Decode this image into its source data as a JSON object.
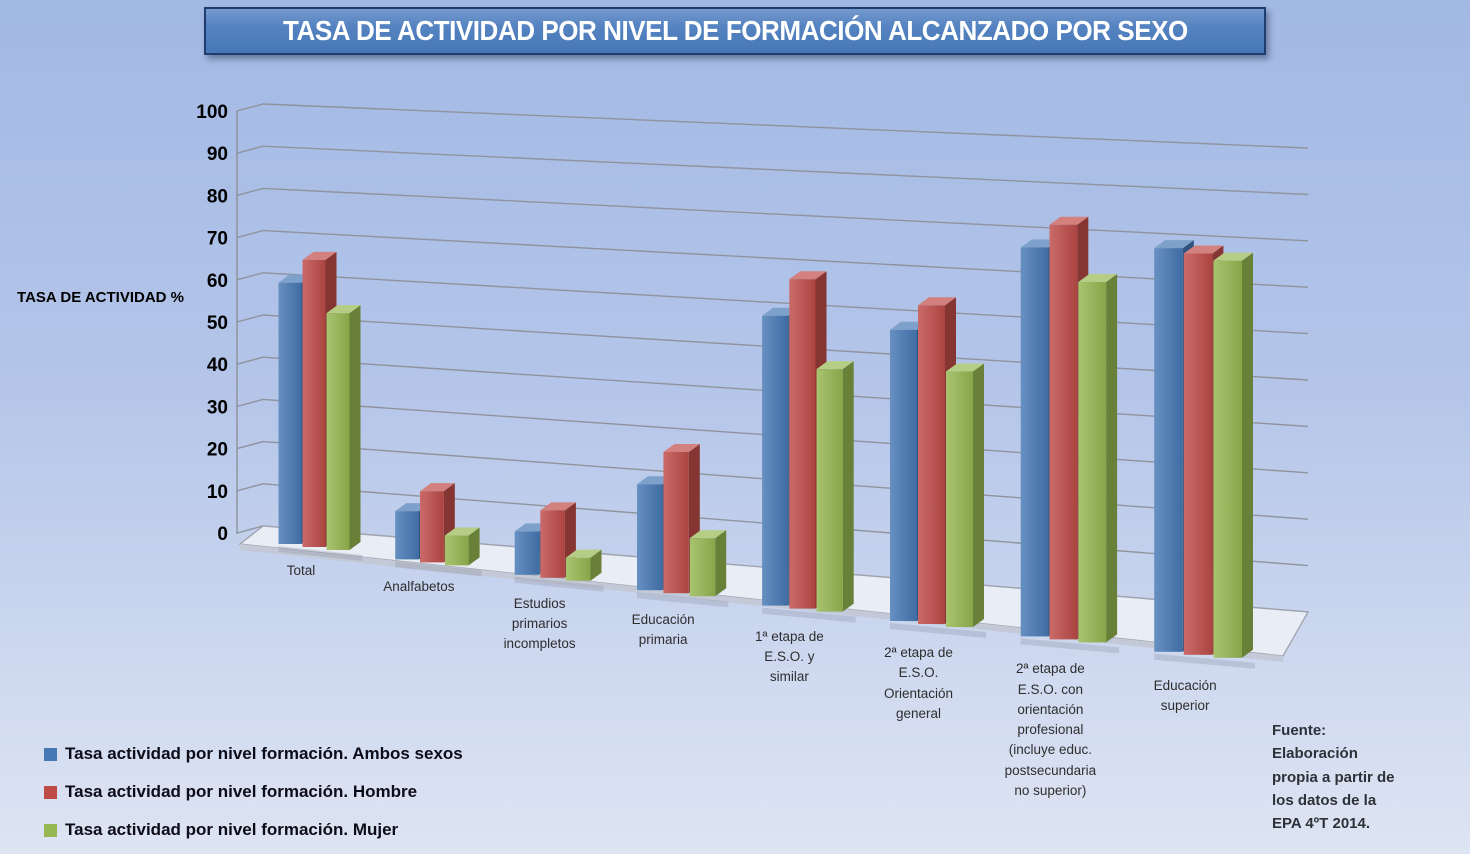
{
  "title": "TASA DE ACTIVIDAD POR NIVEL DE FORMACIÓN ALCANZADO POR SEXO",
  "source_note": "Fuente: Elaboración propia a partir de los datos de la EPA 4ºT 2014.",
  "chart_data": {
    "type": "bar",
    "variant": "3d-column",
    "title": "TASA DE ACTIVIDAD POR NIVEL DE FORMACIÓN ALCANZADO POR SEXO",
    "ylabel": "TASA DE ACTIVIDAD %",
    "ylim": [
      0,
      100
    ],
    "ytick_step": 10,
    "yticks": [
      100,
      90,
      80,
      70,
      60,
      50,
      40,
      30,
      20,
      10,
      0
    ],
    "grid": true,
    "legend_position": "bottom-left",
    "categories": [
      "Total",
      "Analfabetos",
      "Estudios primarios incompletos",
      "Educación primaria",
      "1ª etapa de E.S.O. y similar",
      "2ª etapa de E.S.O. Orientación general",
      "2ª etapa de E.S.O. con orientación profesional (incluye educ. postsecundaria no superior)",
      "Educación superior"
    ],
    "series": [
      {
        "name": "Tasa actividad por nivel formación. Ambos sexos",
        "color": "#4678b5",
        "values": [
          59.8,
          10.5,
          9.0,
          21.0,
          55.0,
          53.0,
          68.0,
          67.9
        ]
      },
      {
        "name": "Tasa actividad por nivel formación. Hombre",
        "color": "#be4b48",
        "values": [
          65.7,
          15.5,
          14.0,
          28.0,
          62.5,
          58.0,
          72.5,
          67.5
        ]
      },
      {
        "name": "Tasa actividad por nivel formación. Mujer",
        "color": "#96b751",
        "values": [
          54.2,
          6.5,
          4.8,
          11.5,
          46.0,
          46.5,
          63.0,
          66.8
        ]
      }
    ]
  }
}
